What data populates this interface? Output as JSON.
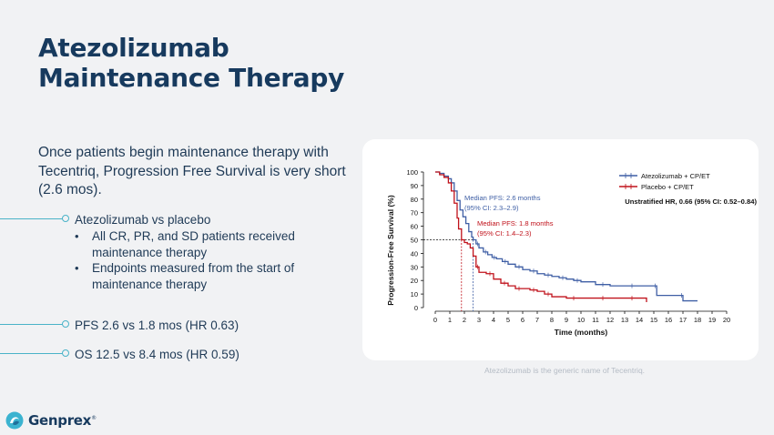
{
  "slide": {
    "title_line1": "Atezolizumab",
    "title_line2": "Maintenance Therapy",
    "intro": "Once patients begin maintenance therapy with Tecentriq, Progression Free Survival is very short (2.6 mos).",
    "bullets": {
      "b1": "Atezolizumab vs placebo",
      "b1_sub": [
        "All CR, PR, and SD patients received maintenance therapy",
        "Endpoints measured from the start of maintenance therapy"
      ],
      "b2": "PFS 2.6 vs 1.8 mos (HR 0.63)",
      "b3": "OS 12.5 vs 8.4 mos (HR 0.59)"
    },
    "footnote": "Atezolizumab is the generic name of Tecentriq.",
    "logo": {
      "text": "Genprex",
      "tm": "®",
      "icon": "genprex-logo-icon"
    },
    "colors": {
      "accent": "#4ab3c8",
      "title": "#173a5e",
      "blue": "#3f5fa5",
      "red": "#c0121b"
    }
  },
  "chart_data": {
    "type": "line",
    "title": "",
    "xlabel": "Time (months)",
    "ylabel": "Progression-Free Survival (%)",
    "xlim": [
      0,
      20
    ],
    "ylim": [
      0,
      100
    ],
    "xticks": [
      0,
      1,
      2,
      3,
      4,
      5,
      6,
      7,
      8,
      9,
      10,
      11,
      12,
      13,
      14,
      15,
      16,
      17,
      18,
      19,
      20
    ],
    "yticks": [
      0,
      10,
      20,
      30,
      40,
      50,
      60,
      70,
      80,
      90,
      100
    ],
    "legend": [
      {
        "label": "Atezolizumab + CP/ET",
        "color": "#3f5fa5"
      },
      {
        "label": "Placebo + CP/ET",
        "color": "#c0121b"
      }
    ],
    "hr_label": "Unstratified HR, 0.66 (95% CI: 0.52–0.84)",
    "annotations": {
      "atezo_median_l1": "Median PFS: 2.6 months",
      "atezo_median_l2": "(95% CI: 2.3–2.9)",
      "placebo_median_l1": "Median PFS: 1.8 months",
      "placebo_median_l2": "(95% CI: 1.4–2.3)"
    },
    "medians": {
      "atezolizumab": 2.6,
      "placebo": 1.8,
      "level": 50
    },
    "series": [
      {
        "name": "Atezolizumab + CP/ET",
        "color": "#3f5fa5",
        "x": [
          0,
          0.3,
          0.6,
          0.9,
          1.1,
          1.3,
          1.5,
          1.7,
          1.9,
          2.1,
          2.3,
          2.5,
          2.6,
          2.8,
          3.0,
          3.3,
          3.6,
          3.9,
          4.2,
          4.6,
          5.0,
          5.5,
          6.0,
          6.5,
          7.0,
          7.5,
          8.0,
          8.5,
          9.0,
          9.5,
          10.0,
          11.0,
          12.0,
          13.0,
          14.0,
          15.0,
          15.2,
          16.8,
          17.0,
          18.0
        ],
        "y": [
          100,
          99,
          97,
          95,
          92,
          86,
          79,
          72,
          67,
          62,
          56,
          52,
          50,
          47,
          44,
          41,
          39,
          37,
          36,
          34,
          32,
          30,
          28,
          27,
          25,
          24,
          23,
          22,
          21,
          20,
          19,
          17,
          16,
          16,
          16,
          16,
          9,
          9,
          5,
          5
        ]
      },
      {
        "name": "Placebo + CP/ET",
        "color": "#c0121b",
        "x": [
          0,
          0.3,
          0.6,
          0.9,
          1.1,
          1.3,
          1.5,
          1.6,
          1.8,
          2.0,
          2.2,
          2.4,
          2.6,
          2.8,
          3.0,
          3.5,
          4.0,
          4.5,
          5.0,
          5.5,
          6.0,
          6.5,
          7.0,
          7.5,
          8.0,
          9.0,
          10.0,
          11.0,
          12.0,
          13.0,
          14.0,
          14.5
        ],
        "y": [
          100,
          98,
          96,
          92,
          86,
          77,
          66,
          58,
          50,
          48,
          47,
          44,
          38,
          30,
          26,
          25,
          21,
          18,
          16,
          14,
          14,
          13,
          12,
          10,
          8,
          7,
          7,
          7,
          7,
          7,
          7,
          4
        ]
      }
    ]
  }
}
